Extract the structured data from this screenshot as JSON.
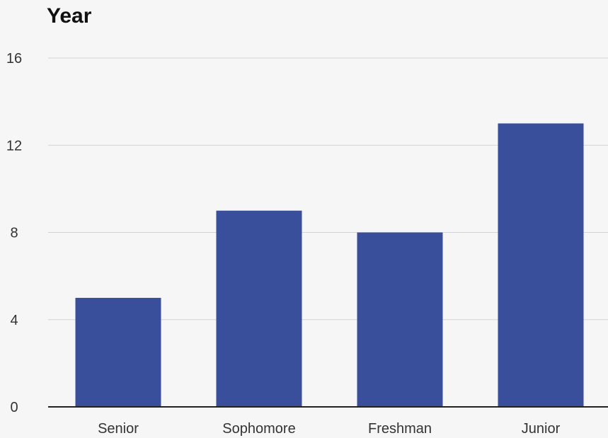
{
  "chart_data": {
    "type": "bar",
    "title": "Year",
    "xlabel": "",
    "ylabel": "",
    "categories": [
      "Senior",
      "Sophomore",
      "Freshman",
      "Junior"
    ],
    "values": [
      5,
      9,
      8,
      13
    ],
    "ylim": [
      0,
      16
    ],
    "yticks": [
      0,
      4,
      8,
      12,
      16
    ],
    "grid": true,
    "legend": "none",
    "colors": {
      "bar": "#3a4f9c",
      "grid": "#d4d4d4",
      "axis": "#222222"
    }
  }
}
